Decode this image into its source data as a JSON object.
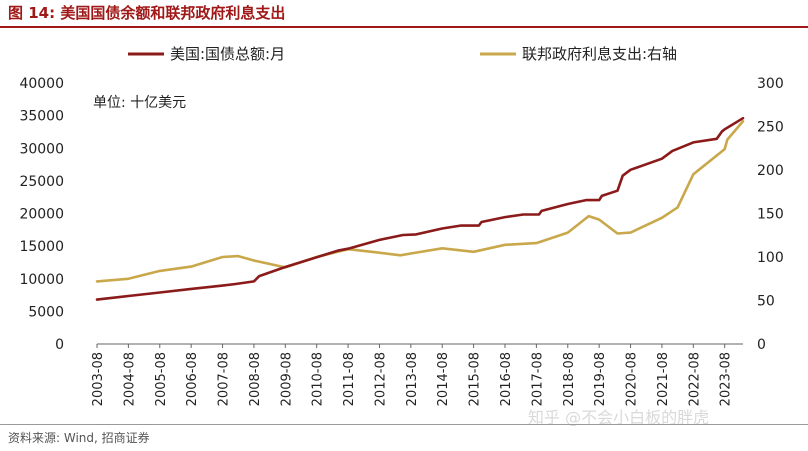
{
  "figure": {
    "title": "图 14:  美国国债余额和联邦政府利息支出",
    "source": "资料来源: Wind, 招商证券",
    "watermark": "知乎 @不会小白板的胖虎"
  },
  "chart_data": {
    "type": "line",
    "unit_note": "单位:  十亿美元",
    "x_ticks": [
      "2003-08",
      "2004-08",
      "2005-08",
      "2006-08",
      "2007-08",
      "2008-08",
      "2009-08",
      "2010-08",
      "2011-08",
      "2012-08",
      "2013-08",
      "2014-08",
      "2015-08",
      "2016-08",
      "2017-08",
      "2018-08",
      "2019-08",
      "2020-08",
      "2021-08",
      "2022-08",
      "2023-08"
    ],
    "y_left": {
      "min": 0,
      "max": 40000,
      "ticks": [
        "0",
        "5000",
        "10000",
        "15000",
        "20000",
        "25000",
        "30000",
        "35000",
        "40000"
      ]
    },
    "y_right": {
      "min": 0,
      "max": 300,
      "ticks": [
        "0",
        "50",
        "100",
        "150",
        "200",
        "250",
        "300"
      ]
    },
    "legend_position": "top",
    "series": [
      {
        "name": "美国:国债总额:月",
        "axis": "left",
        "color": "#8b1a1a",
        "points": [
          [
            "2003-08",
            6800
          ],
          [
            "2004-08",
            7350
          ],
          [
            "2005-08",
            7900
          ],
          [
            "2006-08",
            8450
          ],
          [
            "2007-08",
            8950
          ],
          [
            "2008-01",
            9200
          ],
          [
            "2008-08",
            9600
          ],
          [
            "2008-10",
            10400
          ],
          [
            "2009-08",
            11800
          ],
          [
            "2010-08",
            13300
          ],
          [
            "2011-04",
            14300
          ],
          [
            "2011-08",
            14600
          ],
          [
            "2012-08",
            15950
          ],
          [
            "2013-05",
            16700
          ],
          [
            "2013-10",
            16800
          ],
          [
            "2014-08",
            17700
          ],
          [
            "2015-03",
            18150
          ],
          [
            "2015-10",
            18150
          ],
          [
            "2015-11",
            18700
          ],
          [
            "2016-08",
            19450
          ],
          [
            "2017-03",
            19850
          ],
          [
            "2017-09",
            19850
          ],
          [
            "2017-10",
            20400
          ],
          [
            "2018-08",
            21450
          ],
          [
            "2019-03",
            22050
          ],
          [
            "2019-08",
            22050
          ],
          [
            "2019-09",
            22700
          ],
          [
            "2020-03",
            23500
          ],
          [
            "2020-05",
            25800
          ],
          [
            "2020-08",
            26700
          ],
          [
            "2021-08",
            28400
          ],
          [
            "2021-12",
            29600
          ],
          [
            "2022-08",
            30900
          ],
          [
            "2023-05",
            31450
          ],
          [
            "2023-07",
            32600
          ],
          [
            "2023-08",
            32900
          ],
          [
            "2024-03",
            34600
          ]
        ]
      },
      {
        "name": "联邦政府利息支出:右轴",
        "axis": "right",
        "color": "#c9a84c",
        "points": [
          [
            "2003-08",
            72
          ],
          [
            "2004-08",
            75
          ],
          [
            "2005-08",
            84
          ],
          [
            "2006-08",
            89
          ],
          [
            "2007-08",
            100
          ],
          [
            "2008-02",
            101
          ],
          [
            "2008-08",
            96
          ],
          [
            "2009-08",
            88
          ],
          [
            "2010-04",
            96
          ],
          [
            "2010-08",
            100
          ],
          [
            "2011-08",
            109
          ],
          [
            "2012-08",
            105
          ],
          [
            "2013-04",
            102
          ],
          [
            "2013-08",
            104
          ],
          [
            "2014-08",
            110
          ],
          [
            "2015-08",
            106
          ],
          [
            "2016-08",
            114
          ],
          [
            "2017-08",
            116
          ],
          [
            "2018-08",
            128
          ],
          [
            "2019-04",
            147
          ],
          [
            "2019-08",
            143
          ],
          [
            "2020-03",
            127
          ],
          [
            "2020-08",
            128
          ],
          [
            "2021-08",
            145
          ],
          [
            "2022-02",
            157
          ],
          [
            "2022-08",
            195
          ],
          [
            "2023-08",
            224
          ],
          [
            "2023-09",
            235
          ],
          [
            "2024-03",
            256
          ]
        ]
      }
    ]
  }
}
